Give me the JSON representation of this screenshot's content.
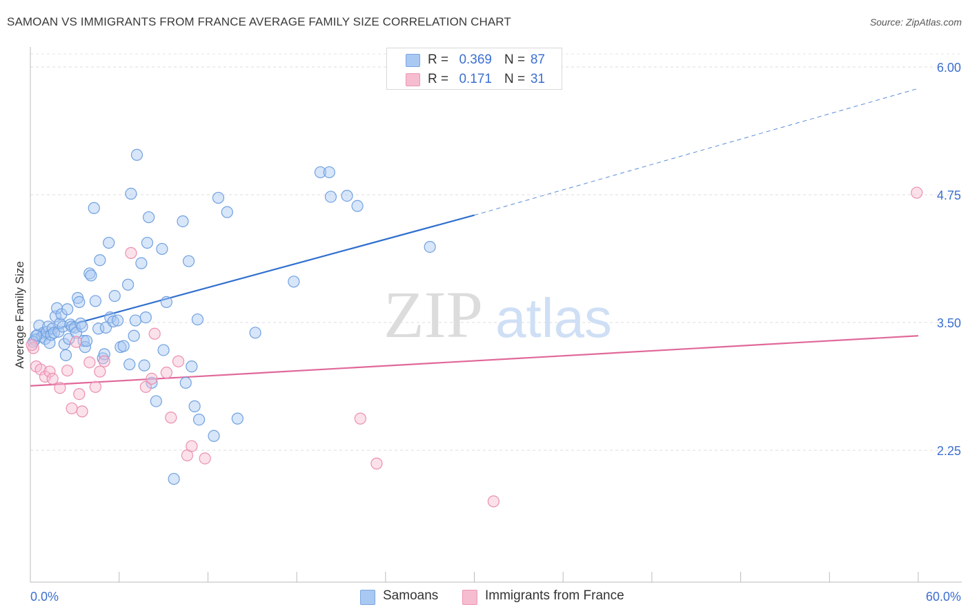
{
  "header": {
    "title": "SAMOAN VS IMMIGRANTS FROM FRANCE AVERAGE FAMILY SIZE CORRELATION CHART",
    "source": "Source: ZipAtlas.com"
  },
  "watermark": {
    "zip": "ZIP",
    "atlas": "atlas"
  },
  "legend_top": {
    "rows": [
      {
        "r_label": "R =",
        "r_value": "0.369",
        "n_label": "N =",
        "n_value": "87",
        "color": "#a9c8f2"
      },
      {
        "r_label": "R =",
        "r_value": "0.171",
        "n_label": "N =",
        "n_value": "31",
        "color": "#f6bcd0"
      }
    ]
  },
  "legend_bottom": {
    "items": [
      {
        "label": "Samoans",
        "color": "#a9c8f2"
      },
      {
        "label": "Immigrants from France",
        "color": "#f6bcd0"
      }
    ]
  },
  "chart_data": {
    "type": "scatter",
    "title": "SAMOAN VS IMMIGRANTS FROM FRANCE AVERAGE FAMILY SIZE CORRELATION CHART",
    "xlabel": "",
    "ylabel": "Average Family Size",
    "x_tick_labels": [
      "0.0%",
      "60.0%"
    ],
    "y_tick_labels": [
      "2.25",
      "3.50",
      "4.75",
      "6.00"
    ],
    "y_ticks": [
      2.25,
      3.5,
      4.75,
      6.0
    ],
    "xlim": [
      0,
      60
    ],
    "ylim": [
      1.0,
      6.15
    ],
    "grid": "horizontal dashed",
    "legend_position": "top-center",
    "series": [
      {
        "name": "Samoans",
        "color": "#6fa0e0",
        "fill": "#a9c8f2",
        "line_color": "#2f6fce",
        "trend": {
          "x0": 0,
          "y0": 3.37,
          "x1": 30,
          "y1": 4.55,
          "dash_to_x": 60,
          "dash_to_y": 5.79
        },
        "points": [
          [
            0.3,
            3.33
          ],
          [
            0.5,
            3.38
          ],
          [
            0.6,
            3.47
          ],
          [
            0.8,
            3.36
          ],
          [
            0.9,
            3.4
          ],
          [
            1.0,
            3.34
          ],
          [
            1.1,
            3.41
          ],
          [
            1.2,
            3.46
          ],
          [
            1.3,
            3.3
          ],
          [
            1.4,
            3.38
          ],
          [
            1.5,
            3.44
          ],
          [
            1.6,
            3.4
          ],
          [
            1.7,
            3.56
          ],
          [
            1.8,
            3.64
          ],
          [
            1.9,
            3.41
          ],
          [
            2.0,
            3.49
          ],
          [
            2.1,
            3.58
          ],
          [
            2.2,
            3.46
          ],
          [
            2.3,
            3.29
          ],
          [
            2.4,
            3.18
          ],
          [
            2.5,
            3.63
          ],
          [
            2.6,
            3.34
          ],
          [
            2.7,
            3.48
          ],
          [
            2.8,
            3.46
          ],
          [
            3.0,
            3.45
          ],
          [
            3.1,
            3.4
          ],
          [
            3.2,
            3.74
          ],
          [
            3.3,
            3.7
          ],
          [
            3.4,
            3.49
          ],
          [
            3.5,
            3.46
          ],
          [
            3.6,
            3.32
          ],
          [
            3.7,
            3.26
          ],
          [
            3.8,
            3.32
          ],
          [
            4.0,
            3.98
          ],
          [
            4.1,
            3.96
          ],
          [
            4.3,
            4.62
          ],
          [
            4.4,
            3.71
          ],
          [
            4.6,
            3.44
          ],
          [
            4.7,
            4.11
          ],
          [
            4.9,
            3.15
          ],
          [
            5.0,
            3.19
          ],
          [
            5.1,
            3.45
          ],
          [
            5.3,
            4.28
          ],
          [
            5.4,
            3.55
          ],
          [
            5.6,
            3.51
          ],
          [
            5.7,
            3.76
          ],
          [
            5.9,
            3.52
          ],
          [
            6.1,
            3.26
          ],
          [
            6.3,
            3.27
          ],
          [
            6.6,
            3.87
          ],
          [
            6.7,
            3.09
          ],
          [
            6.8,
            4.76
          ],
          [
            7.0,
            3.37
          ],
          [
            7.1,
            3.52
          ],
          [
            7.2,
            5.14
          ],
          [
            7.5,
            4.08
          ],
          [
            7.7,
            3.08
          ],
          [
            7.8,
            3.55
          ],
          [
            7.9,
            4.28
          ],
          [
            8.0,
            4.53
          ],
          [
            8.2,
            2.91
          ],
          [
            8.5,
            2.73
          ],
          [
            8.9,
            4.22
          ],
          [
            9.0,
            3.23
          ],
          [
            9.2,
            3.7
          ],
          [
            9.7,
            1.97
          ],
          [
            10.3,
            4.49
          ],
          [
            10.5,
            2.91
          ],
          [
            10.7,
            4.1
          ],
          [
            10.9,
            3.07
          ],
          [
            11.1,
            2.68
          ],
          [
            11.3,
            3.53
          ],
          [
            11.4,
            2.55
          ],
          [
            12.4,
            2.39
          ],
          [
            12.7,
            4.72
          ],
          [
            13.3,
            4.58
          ],
          [
            14.0,
            2.56
          ],
          [
            15.2,
            3.4
          ],
          [
            17.8,
            3.9
          ],
          [
            19.6,
            4.97
          ],
          [
            20.2,
            4.97
          ],
          [
            20.3,
            4.73
          ],
          [
            21.4,
            4.74
          ],
          [
            22.1,
            4.64
          ],
          [
            27.0,
            4.24
          ],
          [
            0.2,
            3.31
          ],
          [
            0.4,
            3.37
          ]
        ]
      },
      {
        "name": "Immigrants from France",
        "color": "#eb8fb0",
        "fill": "#f6bcd0",
        "line_color": "#e0689a",
        "trend": {
          "x0": 0,
          "y0": 2.88,
          "x1": 60,
          "y1": 3.37
        },
        "points": [
          [
            0.2,
            3.25
          ],
          [
            0.4,
            3.07
          ],
          [
            0.7,
            3.04
          ],
          [
            1.0,
            2.97
          ],
          [
            1.3,
            3.02
          ],
          [
            1.5,
            2.95
          ],
          [
            2.0,
            2.86
          ],
          [
            2.5,
            3.03
          ],
          [
            2.8,
            2.66
          ],
          [
            3.1,
            3.31
          ],
          [
            3.3,
            2.8
          ],
          [
            3.5,
            2.63
          ],
          [
            4.0,
            3.11
          ],
          [
            4.4,
            2.87
          ],
          [
            4.7,
            3.02
          ],
          [
            5.0,
            3.12
          ],
          [
            6.8,
            4.18
          ],
          [
            7.8,
            2.87
          ],
          [
            8.2,
            2.95
          ],
          [
            8.4,
            3.39
          ],
          [
            9.2,
            3.01
          ],
          [
            9.5,
            2.57
          ],
          [
            10.0,
            3.12
          ],
          [
            10.6,
            2.2
          ],
          [
            10.9,
            2.29
          ],
          [
            11.8,
            2.17
          ],
          [
            22.3,
            2.56
          ],
          [
            23.4,
            2.12
          ],
          [
            31.3,
            1.75
          ],
          [
            59.9,
            4.77
          ],
          [
            0.1,
            3.28
          ]
        ]
      }
    ]
  }
}
